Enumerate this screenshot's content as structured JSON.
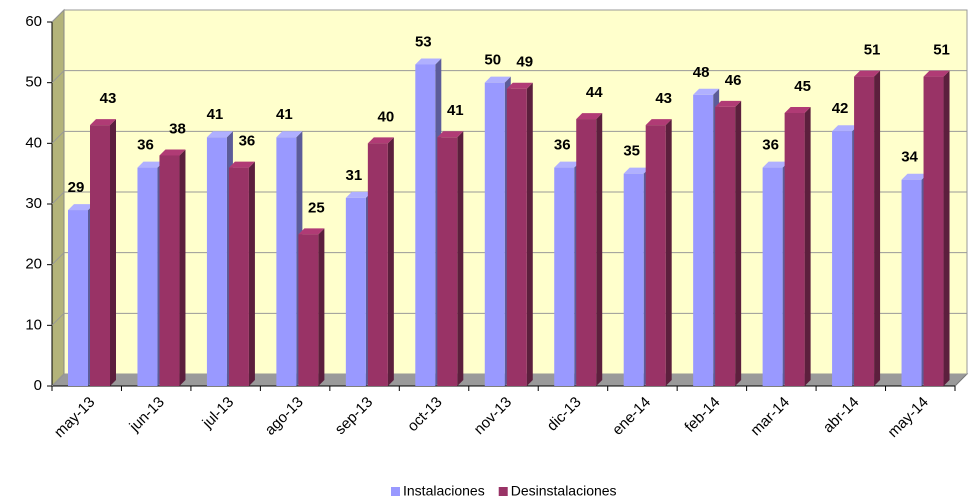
{
  "chart_data": {
    "type": "bar3d",
    "categories": [
      "may-13",
      "jun-13",
      "jul-13",
      "ago-13",
      "sep-13",
      "oct-13",
      "nov-13",
      "dic-13",
      "ene-14",
      "feb-14",
      "mar-14",
      "abr-14",
      "may-14"
    ],
    "series": [
      {
        "name": "Instalaciones",
        "color": "#9999ff",
        "values": [
          29,
          36,
          41,
          41,
          31,
          53,
          50,
          36,
          35,
          48,
          36,
          42,
          34
        ]
      },
      {
        "name": "Desinstalaciones",
        "color": "#993366",
        "values": [
          43,
          38,
          36,
          25,
          40,
          41,
          49,
          44,
          43,
          46,
          45,
          51,
          51
        ]
      }
    ],
    "ylim": [
      0,
      60
    ],
    "yticks": [
      0,
      10,
      20,
      30,
      40,
      50,
      60
    ],
    "grid": true,
    "legend": "bottom"
  }
}
